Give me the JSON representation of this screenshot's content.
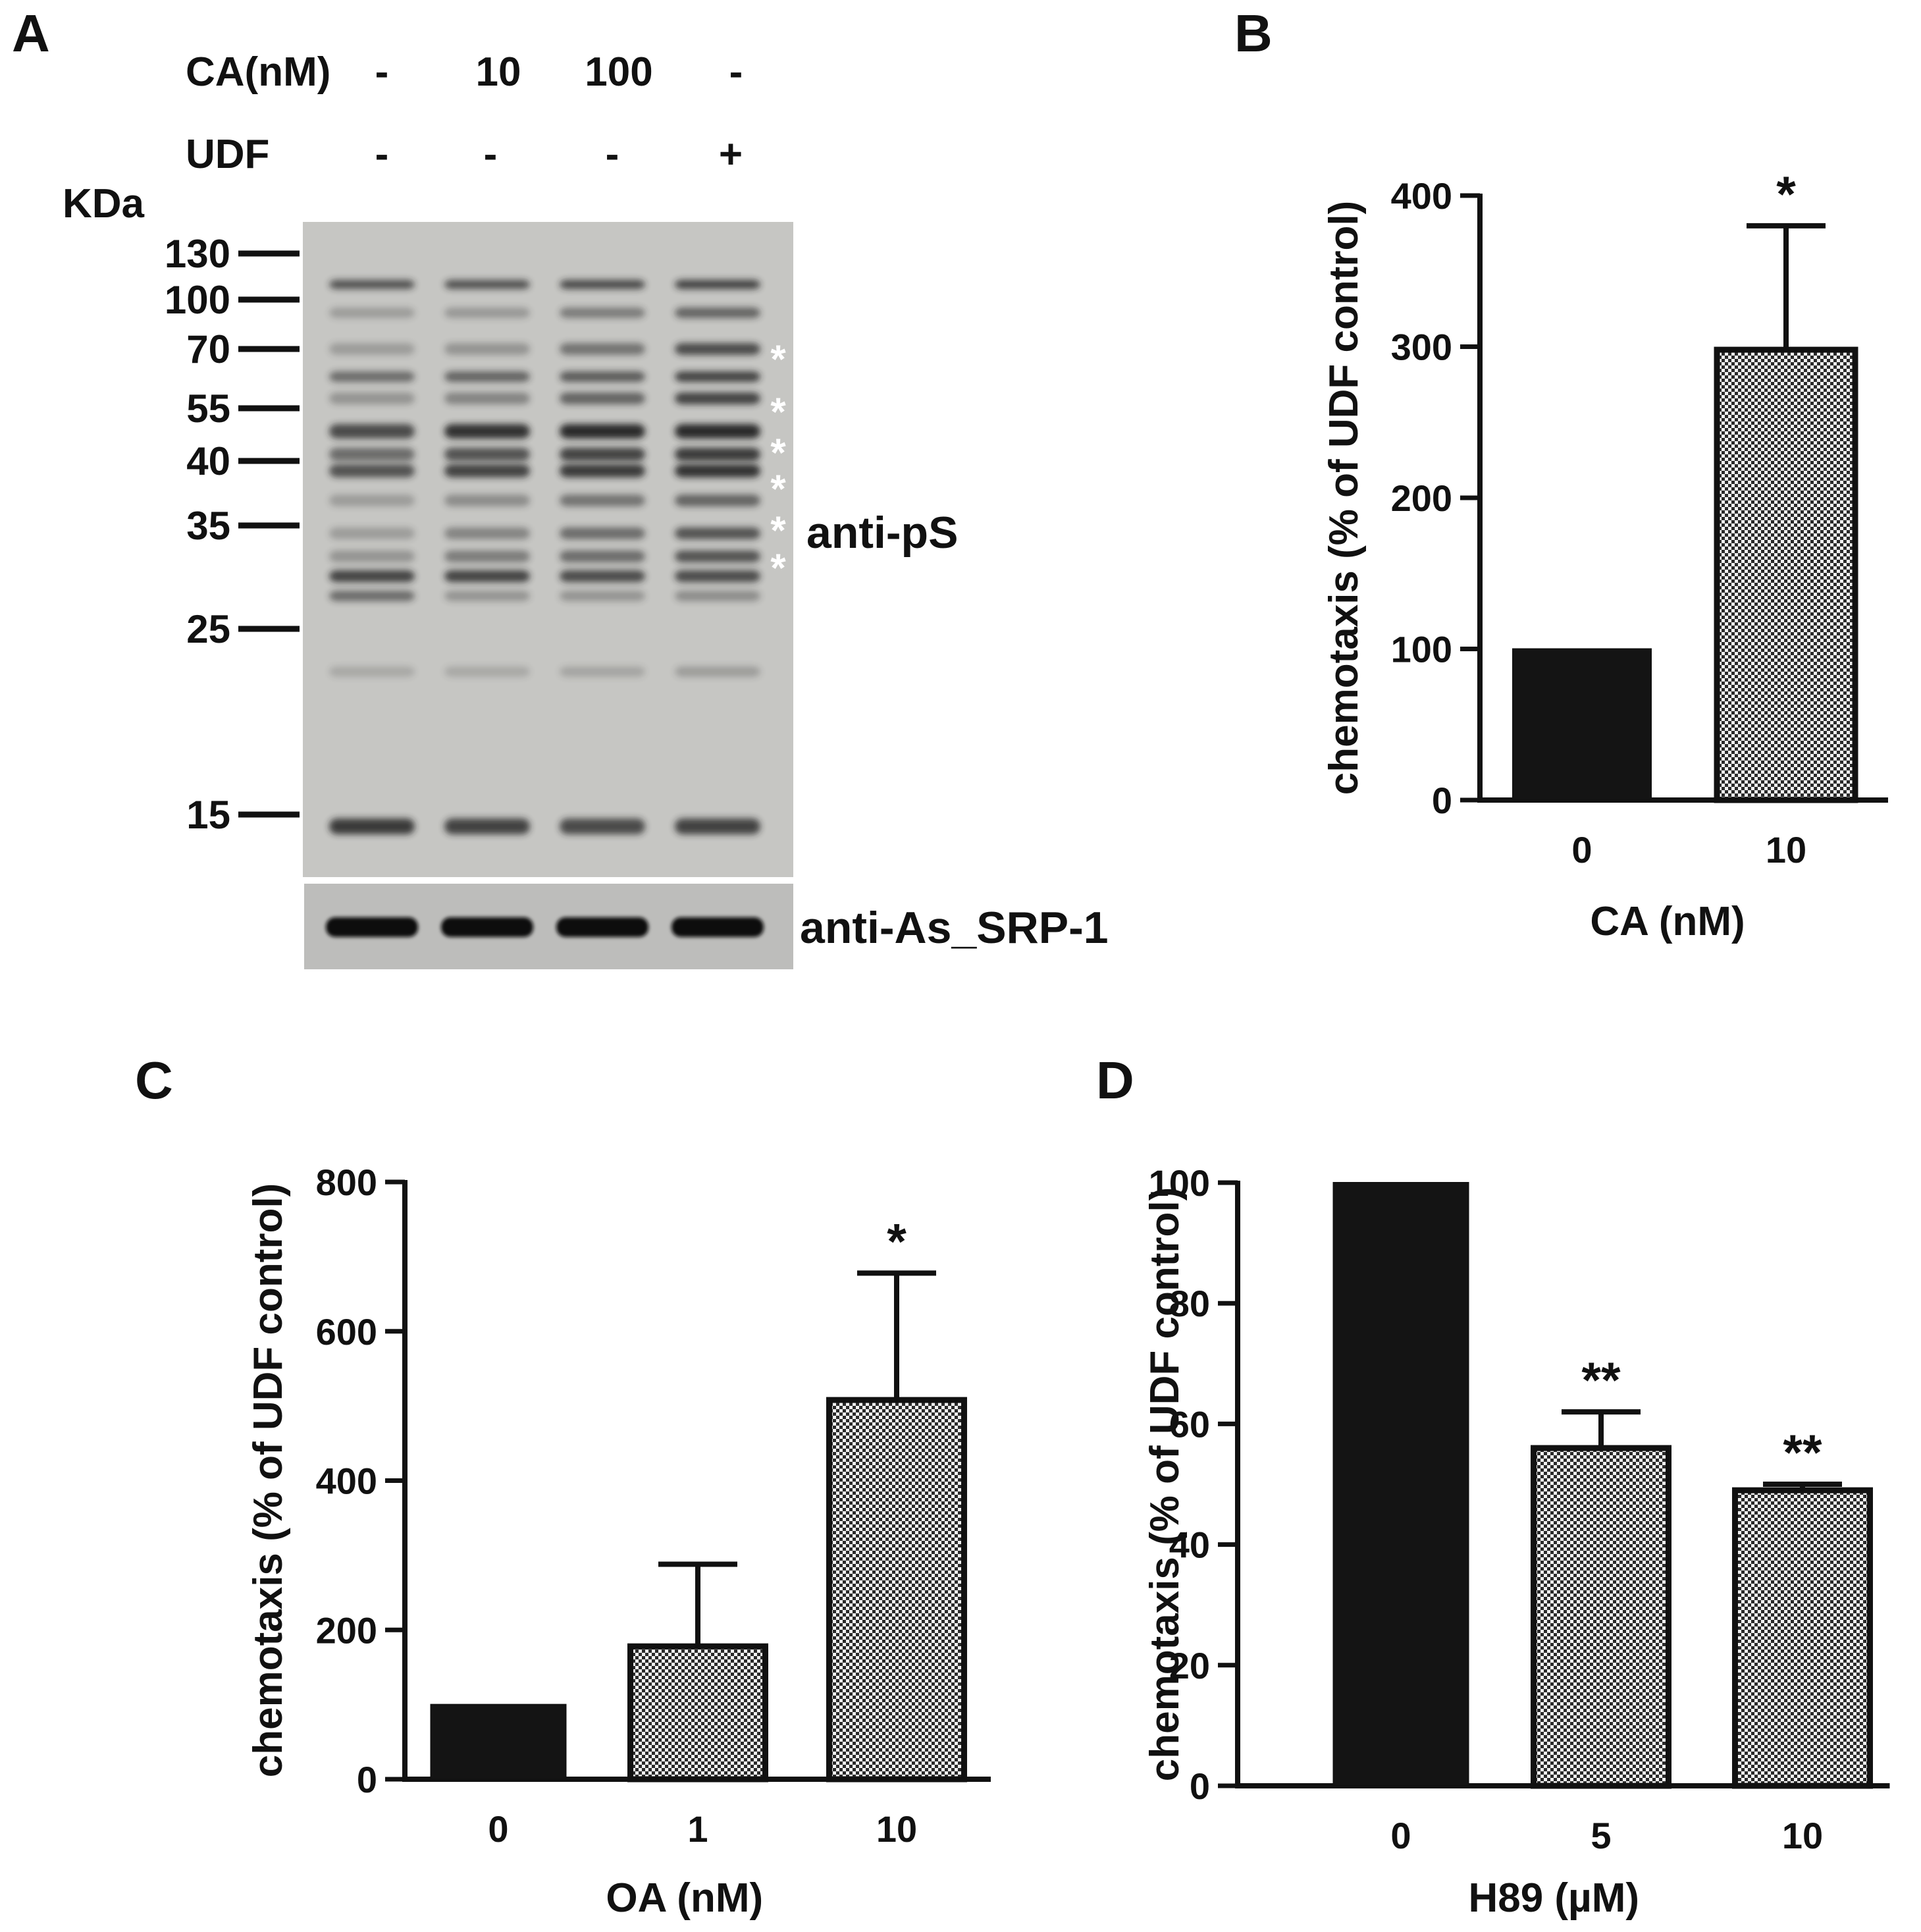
{
  "panels": {
    "A": {
      "letter": "A",
      "row_labels": [
        "CA(nM)",
        "UDF"
      ],
      "lanes": [
        {
          "ca": "-",
          "udf": "-"
        },
        {
          "ca": "10",
          "udf": "-"
        },
        {
          "ca": "100",
          "udf": "-"
        },
        {
          "ca": "-",
          "udf": "+"
        }
      ],
      "kda_label": "KDa",
      "markers": [
        "130",
        "100",
        "70",
        "55",
        "40",
        "35",
        "25",
        "15"
      ],
      "blot_label_top": "anti-pS",
      "blot_label_bottom": "anti-As_SRP-1",
      "asterisk_count": 6,
      "asterisk_symbol": "*"
    },
    "B": {
      "letter": "B"
    },
    "C": {
      "letter": "C"
    },
    "D": {
      "letter": "D"
    }
  },
  "chart_data": [
    {
      "panel": "B",
      "type": "bar",
      "categories": [
        "0",
        "10"
      ],
      "values": [
        100,
        298
      ],
      "errors": [
        0,
        82
      ],
      "significance": [
        "",
        "*"
      ],
      "bar_styles": [
        "solid",
        "dotted"
      ],
      "ylabel": "chemotaxis (% of UDF control)",
      "xlabel": "CA (nM)",
      "ylim": [
        0,
        400
      ],
      "yticks": [
        "0",
        "100",
        "200",
        "300",
        "400"
      ]
    },
    {
      "panel": "C",
      "type": "bar",
      "categories": [
        "0",
        "1",
        "10"
      ],
      "values": [
        100,
        178,
        508
      ],
      "errors": [
        0,
        110,
        170
      ],
      "significance": [
        "",
        "",
        "*"
      ],
      "bar_styles": [
        "solid",
        "dotted",
        "dotted"
      ],
      "ylabel": "chemotaxis (% of UDF control)",
      "xlabel": "OA (nM)",
      "ylim": [
        0,
        800
      ],
      "yticks": [
        "0",
        "200",
        "400",
        "600",
        "800"
      ]
    },
    {
      "panel": "D",
      "type": "bar",
      "categories": [
        "0",
        "5",
        "10"
      ],
      "values": [
        100,
        56,
        49
      ],
      "errors": [
        0,
        6,
        1
      ],
      "significance": [
        "",
        "**",
        "**"
      ],
      "bar_styles": [
        "solid",
        "dotted",
        "dotted"
      ],
      "ylabel": "chemotaxis (% of UDF control)",
      "xlabel": "H89 (µM)",
      "ylim": [
        0,
        100
      ],
      "yticks": [
        "0",
        "20",
        "40",
        "60",
        "80",
        "100"
      ]
    }
  ]
}
